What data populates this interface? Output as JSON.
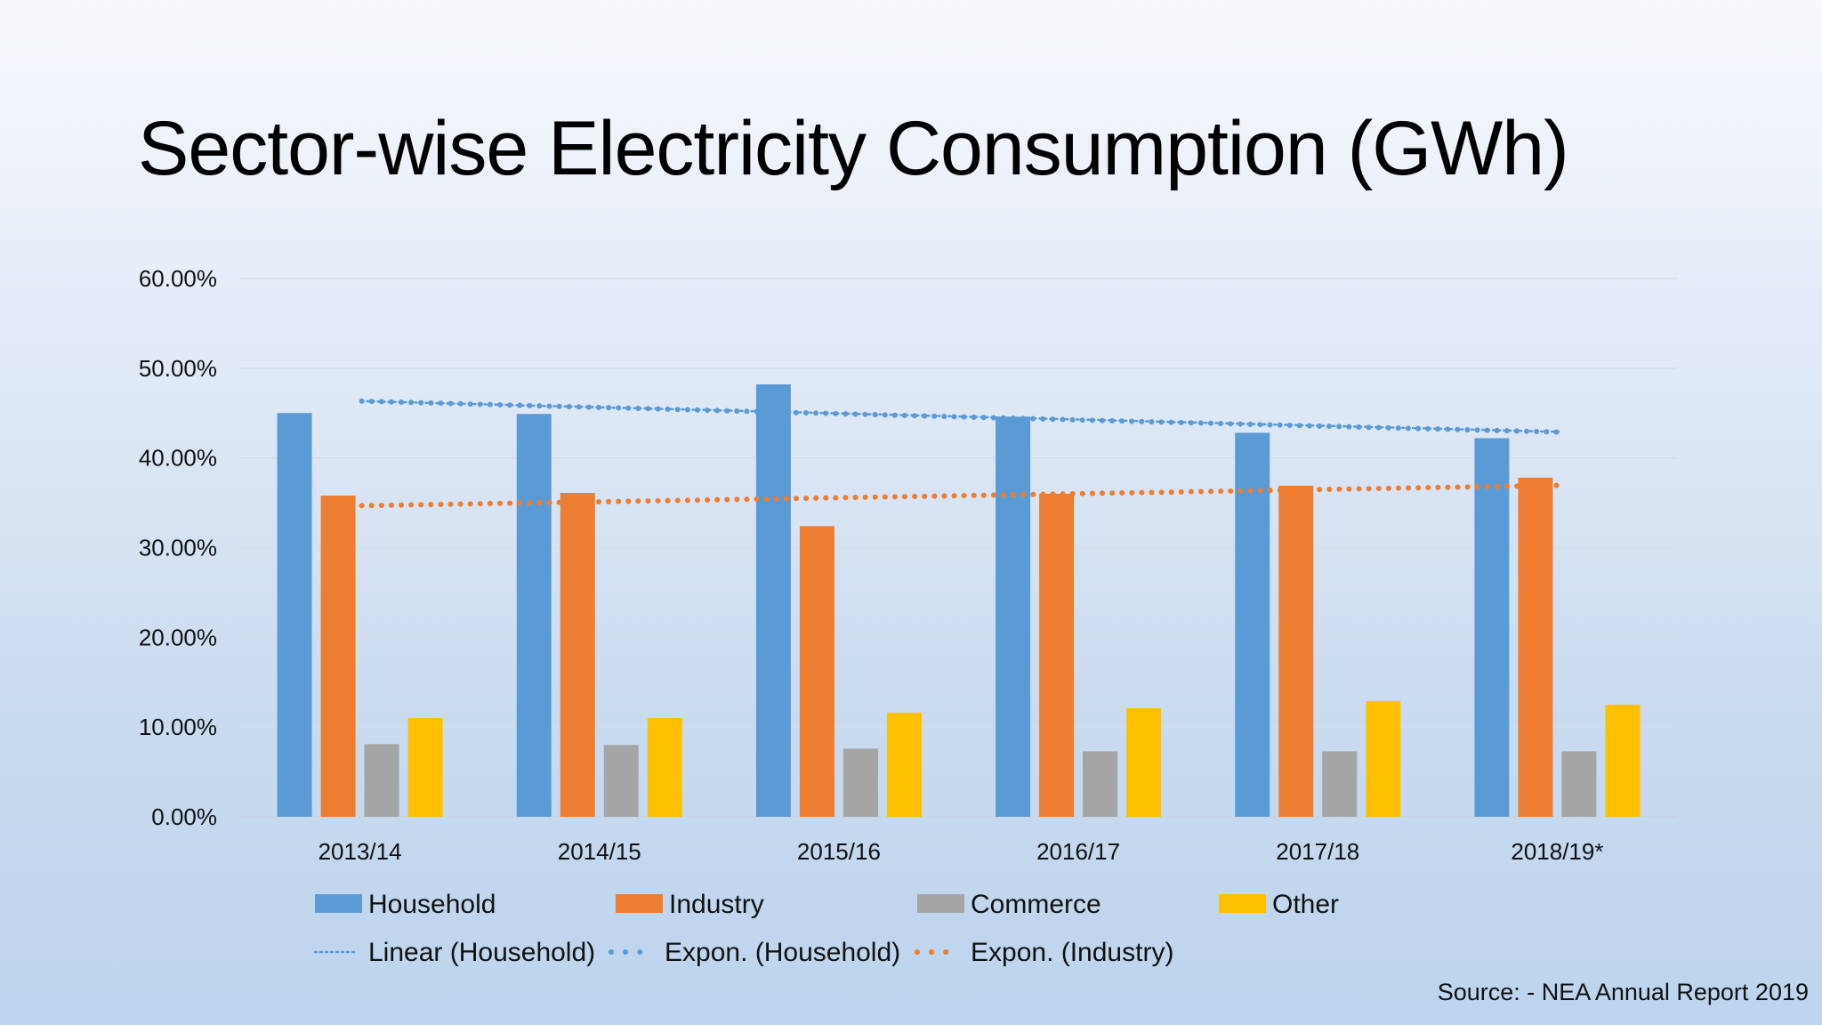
{
  "slide": {
    "title": "Sector-wise Electricity Consumption (GWh)",
    "source": "Source: - NEA Annual Report 2019"
  },
  "chart_data": {
    "type": "bar",
    "categories": [
      "2013/14",
      "2014/15",
      "2015/16",
      "2016/17",
      "2017/18",
      "2018/19*"
    ],
    "series": [
      {
        "name": "Household",
        "color": "#5b9bd5",
        "values": [
          45.0,
          44.9,
          48.2,
          44.6,
          42.8,
          42.2
        ]
      },
      {
        "name": "Industry",
        "color": "#ed7d31",
        "values": [
          35.8,
          36.1,
          32.4,
          36.0,
          36.9,
          37.8
        ]
      },
      {
        "name": "Commerce",
        "color": "#a5a5a5",
        "values": [
          8.1,
          8.0,
          7.6,
          7.3,
          7.3,
          7.3
        ]
      },
      {
        "name": "Other",
        "color": "#ffc000",
        "values": [
          11.0,
          11.0,
          11.6,
          12.1,
          12.9,
          12.5
        ]
      }
    ],
    "trendlines": [
      {
        "name": "Linear (Household)",
        "series": "Household",
        "kind": "linear",
        "style": "dotted-thin",
        "color": "#5b9bd5"
      },
      {
        "name": "Expon. (Household)",
        "series": "Household",
        "kind": "exponential",
        "style": "dotted-thick",
        "color": "#5b9bd5"
      },
      {
        "name": "Expon. (Industry)",
        "series": "Industry",
        "kind": "exponential",
        "style": "dotted-thick",
        "color": "#ed7d31"
      }
    ],
    "yticks": [
      "0.00%",
      "10.00%",
      "20.00%",
      "30.00%",
      "40.00%",
      "50.00%",
      "60.00%"
    ],
    "ylim": [
      0,
      60
    ],
    "grid": true,
    "legend_position": "bottom"
  }
}
